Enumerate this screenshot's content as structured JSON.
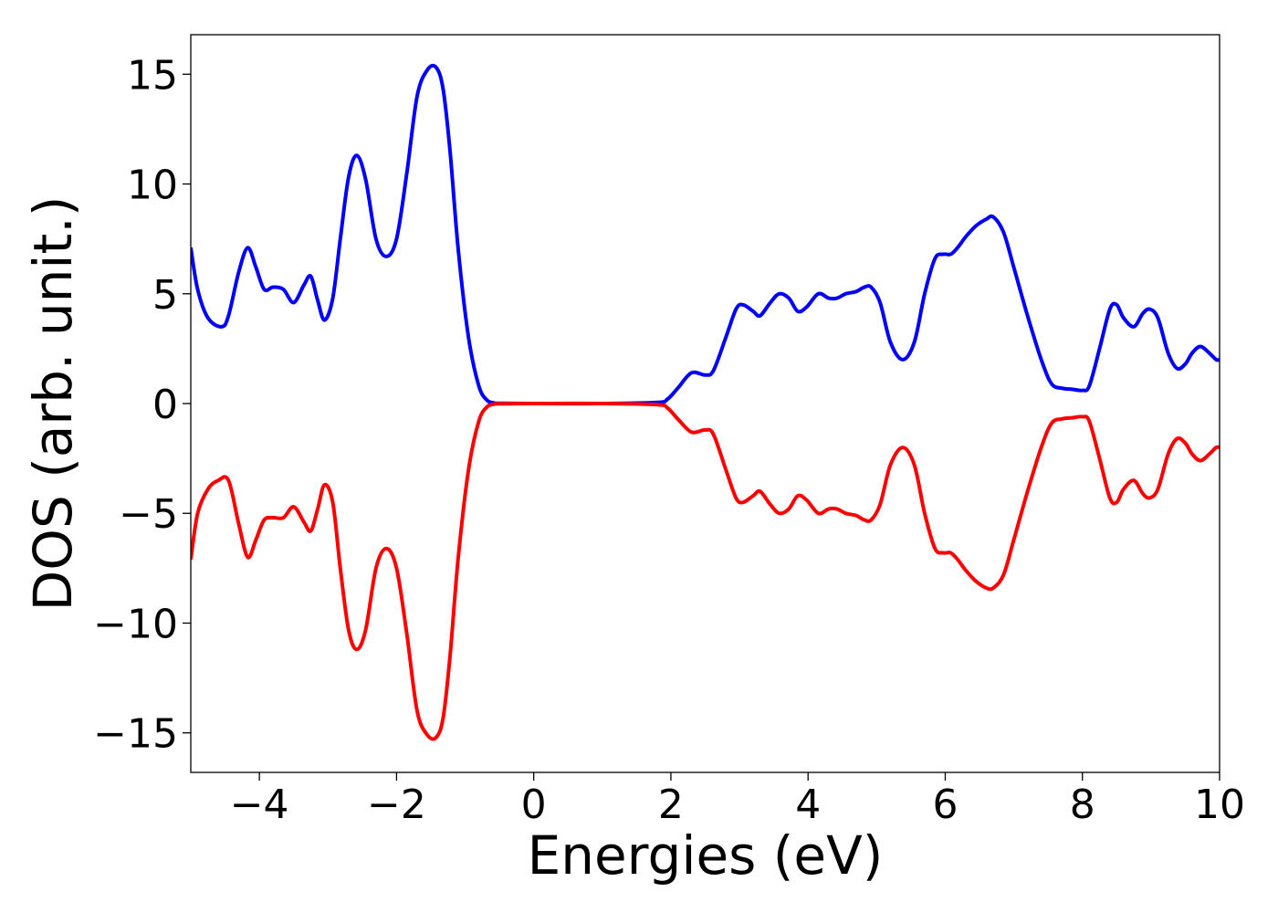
{
  "chart_data": {
    "type": "line",
    "title": "",
    "xlabel": "Energies (eV)",
    "ylabel": "DOS (arb. unit.)",
    "xlim": [
      -5,
      10
    ],
    "ylim": [
      -16.8,
      16.8
    ],
    "xticks": [
      -4,
      -2,
      0,
      2,
      4,
      6,
      8,
      10
    ],
    "yticks": [
      -15,
      -10,
      -5,
      0,
      5,
      10,
      15
    ],
    "xtick_labels": [
      "−4",
      "−2",
      "0",
      "2",
      "4",
      "6",
      "8",
      "10"
    ],
    "ytick_labels": [
      "−15",
      "−10",
      "−5",
      "0",
      "5",
      "10",
      "15"
    ],
    "grid": false,
    "legend": "none",
    "series": [
      {
        "color": "#0000ff",
        "x": [
          -5.0,
          -4.9,
          -4.75,
          -4.55,
          -4.45,
          -4.3,
          -4.17,
          -4.05,
          -3.93,
          -3.8,
          -3.65,
          -3.5,
          -3.35,
          -3.25,
          -3.15,
          -3.05,
          -2.93,
          -2.82,
          -2.7,
          -2.58,
          -2.45,
          -2.3,
          -2.15,
          -2.0,
          -1.85,
          -1.7,
          -1.55,
          -1.42,
          -1.32,
          -1.22,
          -1.1,
          -0.95,
          -0.8,
          -0.68,
          -0.58,
          -0.5,
          0.0,
          1.0,
          1.8,
          1.95,
          2.1,
          2.3,
          2.5,
          2.62,
          2.8,
          2.95,
          3.05,
          3.2,
          3.3,
          3.45,
          3.58,
          3.72,
          3.85,
          3.98,
          4.15,
          4.3,
          4.42,
          4.55,
          4.7,
          4.82,
          4.92,
          5.05,
          5.2,
          5.38,
          5.55,
          5.7,
          5.85,
          5.97,
          6.08,
          6.18,
          6.3,
          6.45,
          6.6,
          6.7,
          6.85,
          7.0,
          7.2,
          7.4,
          7.55,
          7.7,
          7.85,
          8.0,
          8.1,
          8.25,
          8.4,
          8.5,
          8.6,
          8.75,
          8.88,
          8.98,
          9.1,
          9.25,
          9.38,
          9.5,
          9.6,
          9.72,
          9.85,
          9.95,
          10.0
        ],
        "values": [
          7.1,
          5.2,
          3.9,
          3.5,
          4.0,
          6.0,
          7.1,
          6.2,
          5.2,
          5.3,
          5.2,
          4.6,
          5.4,
          5.8,
          4.7,
          3.8,
          4.8,
          7.5,
          10.3,
          11.3,
          10.2,
          7.5,
          6.7,
          7.5,
          10.5,
          14.0,
          15.2,
          15.3,
          14.3,
          11.5,
          7.0,
          3.0,
          0.8,
          0.15,
          0.03,
          0.01,
          0.0,
          0.0,
          0.05,
          0.2,
          0.7,
          1.4,
          1.3,
          1.5,
          3.0,
          4.3,
          4.5,
          4.2,
          4.0,
          4.6,
          5.0,
          4.8,
          4.2,
          4.4,
          5.0,
          4.8,
          4.8,
          5.0,
          5.1,
          5.3,
          5.3,
          4.6,
          2.8,
          2.0,
          2.8,
          5.0,
          6.6,
          6.8,
          6.8,
          7.1,
          7.6,
          8.1,
          8.4,
          8.5,
          7.8,
          6.2,
          4.0,
          2.0,
          0.9,
          0.7,
          0.65,
          0.6,
          0.8,
          2.5,
          4.3,
          4.5,
          3.9,
          3.5,
          4.1,
          4.3,
          3.9,
          2.3,
          1.6,
          1.8,
          2.3,
          2.6,
          2.3,
          2.0,
          2.0
        ]
      },
      {
        "color": "#ff0000",
        "x": [
          -5.0,
          -4.9,
          -4.75,
          -4.6,
          -4.45,
          -4.3,
          -4.17,
          -4.05,
          -3.93,
          -3.8,
          -3.65,
          -3.5,
          -3.35,
          -3.25,
          -3.15,
          -3.05,
          -2.93,
          -2.82,
          -2.7,
          -2.58,
          -2.45,
          -2.3,
          -2.15,
          -2.0,
          -1.85,
          -1.7,
          -1.55,
          -1.42,
          -1.32,
          -1.22,
          -1.1,
          -0.95,
          -0.8,
          -0.68,
          -0.58,
          -0.5,
          0.0,
          1.0,
          1.8,
          1.95,
          2.1,
          2.3,
          2.5,
          2.62,
          2.8,
          2.95,
          3.05,
          3.2,
          3.3,
          3.45,
          3.58,
          3.72,
          3.85,
          3.98,
          4.15,
          4.3,
          4.42,
          4.55,
          4.7,
          4.82,
          4.92,
          5.05,
          5.2,
          5.38,
          5.55,
          5.7,
          5.85,
          5.97,
          6.08,
          6.18,
          6.3,
          6.45,
          6.6,
          6.7,
          6.85,
          7.0,
          7.2,
          7.4,
          7.55,
          7.7,
          7.85,
          8.0,
          8.1,
          8.25,
          8.4,
          8.5,
          8.6,
          8.75,
          8.88,
          8.98,
          9.1,
          9.25,
          9.38,
          9.5,
          9.6,
          9.72,
          9.85,
          9.95,
          10.0
        ],
        "values": [
          -7.1,
          -5.0,
          -3.9,
          -3.5,
          -3.5,
          -5.5,
          -7.0,
          -6.2,
          -5.3,
          -5.2,
          -5.2,
          -4.7,
          -5.4,
          -5.8,
          -4.8,
          -3.7,
          -4.5,
          -7.5,
          -10.3,
          -11.2,
          -10.3,
          -7.5,
          -6.6,
          -7.5,
          -10.5,
          -14.0,
          -15.1,
          -15.2,
          -14.3,
          -11.5,
          -7.0,
          -3.0,
          -0.8,
          -0.15,
          -0.03,
          -0.01,
          0.0,
          0.0,
          -0.05,
          -0.2,
          -0.7,
          -1.3,
          -1.2,
          -1.4,
          -3.0,
          -4.3,
          -4.5,
          -4.2,
          -4.0,
          -4.6,
          -5.0,
          -4.8,
          -4.2,
          -4.4,
          -5.0,
          -4.8,
          -4.8,
          -5.0,
          -5.1,
          -5.3,
          -5.3,
          -4.6,
          -2.8,
          -2.0,
          -2.8,
          -5.0,
          -6.6,
          -6.8,
          -6.8,
          -7.1,
          -7.6,
          -8.1,
          -8.4,
          -8.4,
          -7.8,
          -6.2,
          -4.0,
          -2.0,
          -0.9,
          -0.7,
          -0.65,
          -0.6,
          -0.8,
          -2.5,
          -4.3,
          -4.5,
          -3.9,
          -3.5,
          -4.1,
          -4.3,
          -3.9,
          -2.3,
          -1.6,
          -1.8,
          -2.3,
          -2.6,
          -2.3,
          -2.0,
          -2.0
        ]
      }
    ]
  }
}
